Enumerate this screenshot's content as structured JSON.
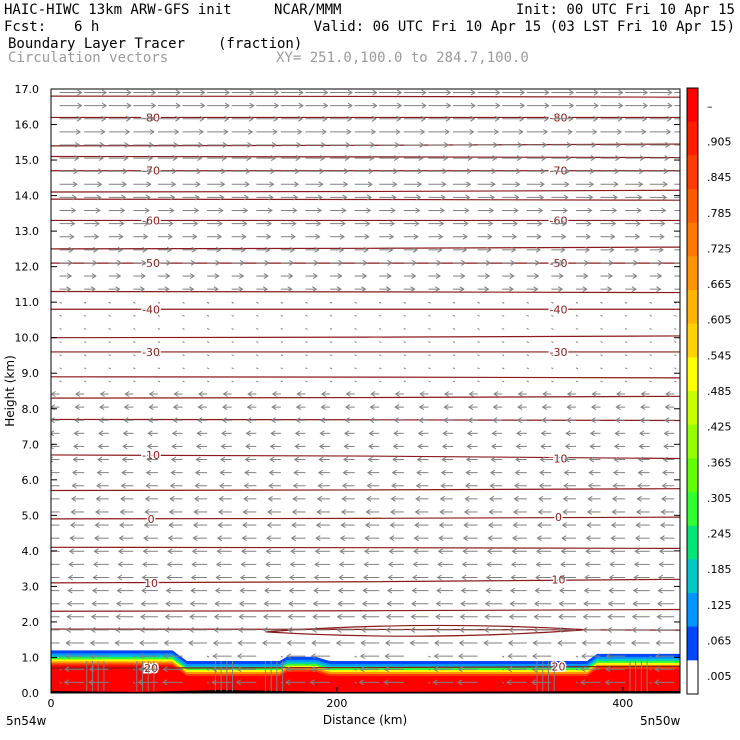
{
  "header": {
    "model": "HAIC-HIWC 13km ARW-GFS init",
    "org": "NCAR/MMM",
    "init": "Init: 00 UTC Fri 10 Apr 15",
    "fcst_label": "Fcst:",
    "fcst_value": "6 h",
    "valid": "Valid: 06 UTC Fri 10 Apr 15 (03 LST Fri 10 Apr 15)",
    "field": "Boundary Layer Tracer",
    "field_units": "(fraction)",
    "vectors": "Circulation vectors",
    "xy": "XY= 251.0,100.0 to 284.7,100.0"
  },
  "chart_data": {
    "type": "heatmap",
    "xlabel": "Distance (km)",
    "ylabel": "Height (km)",
    "xlim": [
      0,
      440
    ],
    "ylim": [
      0,
      17
    ],
    "x_ticks": [
      "0",
      "200",
      "400"
    ],
    "y_ticks": [
      "0.0",
      "1.0",
      "2.0",
      "3.0",
      "4.0",
      "5.0",
      "6.0",
      "7.0",
      "8.0",
      "9.0",
      "10.0",
      "11.0",
      "12.0",
      "13.0",
      "14.0",
      "15.0",
      "16.0",
      "17.0"
    ],
    "x_endpoints": {
      "left": "5n54w",
      "right": "5n50w"
    },
    "colorbar": {
      "labels": [
        "–",
        ".905",
        ".845",
        ".785",
        ".725",
        ".665",
        ".605",
        ".545",
        ".485",
        ".425",
        ".365",
        ".305",
        ".245",
        ".185",
        ".125",
        ".065",
        ".005"
      ],
      "colors": [
        "#ff0000",
        "#ff1e00",
        "#ff3c00",
        "#ff5a00",
        "#ff7800",
        "#ff9600",
        "#ffb400",
        "#ffd200",
        "#ffff00",
        "#c8ff00",
        "#96ff00",
        "#64ff00",
        "#32ff32",
        "#00e678",
        "#00c8c8",
        "#0096ff",
        "#0046ff",
        "#ffffff"
      ]
    },
    "temperature_isotherms": [
      {
        "label": "-80",
        "heights_km": [
          16.2,
          16.2
        ]
      },
      {
        "label": "-70",
        "heights_km": [
          14.7,
          14.7
        ]
      },
      {
        "label": "-60",
        "heights_km": [
          13.3,
          13.3
        ]
      },
      {
        "label": "-50",
        "heights_km": [
          12.1,
          12.1
        ]
      },
      {
        "label": "-40",
        "heights_km": [
          10.8,
          10.8
        ]
      },
      {
        "label": "-30",
        "heights_km": [
          9.6,
          9.6
        ]
      },
      {
        "label": "-10",
        "heights_km": [
          6.7,
          6.6
        ]
      },
      {
        "label": "0",
        "heights_km": [
          4.9,
          4.95
        ]
      },
      {
        "label": "10",
        "heights_km": [
          3.1,
          3.2
        ]
      },
      {
        "label": "20",
        "heights_km": [
          0.7,
          0.75
        ]
      }
    ],
    "extra_isotherm_heights_km": [
      16.8,
      15.4,
      15.1,
      14.1,
      13.9,
      12.5,
      11.3,
      10.0,
      8.9,
      8.3,
      7.7,
      5.7,
      4.1,
      2.3,
      1.8
    ],
    "boundary_layer": {
      "top_km_left": 1.2,
      "top_km_mid": 0.9,
      "top_km_right": 1.1,
      "fraction_values": [
        0.005,
        0.065,
        0.125,
        0.185,
        0.245,
        0.305,
        0.365,
        0.425,
        0.485,
        0.545,
        0.605,
        0.665,
        0.725,
        0.785,
        0.845,
        0.905,
        1.0
      ]
    },
    "wind_vectors": {
      "upper_flow": "westerly",
      "lower_flow": "easterly",
      "transition_km": 11.0
    }
  }
}
